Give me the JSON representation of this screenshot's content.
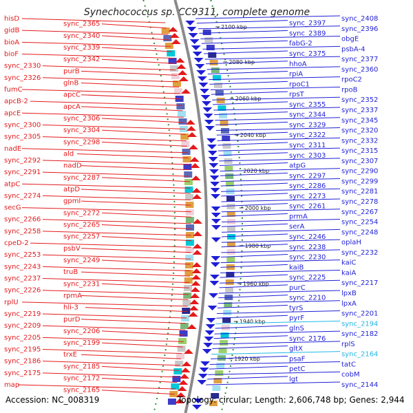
{
  "title": "Synechococcus sp. CC9311, complete genome",
  "accession": "Accession: NC_008319",
  "topology": "Topology: circular; Length: 2,606,748 bp; Genes: 2,944",
  "colors": {
    "forward": "#e41a1c",
    "reverse": "#1f1fd6",
    "highlight": "#20b7e8",
    "backbone": "#8a8a8a",
    "dotted_ring": "#2e8b2e"
  },
  "ticks": [
    "2100 kbp",
    "2080 kbp",
    "2060 kbp",
    "2040 kbp",
    "2020 kbp",
    "2000 kbp",
    "1980 kbp",
    "1960 kbp",
    "1940 kbp",
    "1920 kbp"
  ],
  "forward_genes": [
    "hisD",
    "sync_2365",
    "gidB",
    "sync_2340",
    "bioA",
    "sync_2339",
    "bioF",
    "sync_2342",
    "sync_2330",
    "purB",
    "sync_2326",
    "glnB",
    "fumC",
    "apcC",
    "apcB-2",
    "apcA",
    "apcE",
    "sync_2306",
    "sync_2300",
    "sync_2304",
    "sync_2305",
    "sync_2298",
    "nadE",
    "ald",
    "sync_2292",
    "nadD",
    "sync_2291",
    "sync_2287",
    "atpC",
    "atpD",
    "sync_2274",
    "gpmI",
    "secG",
    "sync_2272",
    "sync_2266",
    "sync_2265",
    "sync_2258",
    "sync_2257",
    "cpeD-2",
    "psbV",
    "sync_2253",
    "sync_2249",
    "sync_2243",
    "truB",
    "sync_2237",
    "sync_2231",
    "sync_2226",
    "rpmA",
    "rplU",
    "hli-3",
    "sync_2219",
    "purD",
    "sync_2209",
    "sync_2206",
    "sync_2205",
    "sync_2199",
    "sync_2195",
    "trxE",
    "sync_2186",
    "sync_2185",
    "sync_2175",
    "sync_2172",
    "map",
    "sync_2165"
  ],
  "reverse_genes": [
    "sync_2408",
    "sync_2397",
    "sync_2396",
    "sync_2389",
    "obgE",
    "fabG-2",
    "psbA-4",
    "sync_2375",
    "sync_2377",
    "hhoA",
    "sync_2360",
    "rpiA",
    "rpoC2",
    "rpoC1",
    "rpoB",
    "rpsT",
    "sync_2352",
    "sync_2355",
    "sync_2337",
    "sync_2344",
    "sync_2345",
    "sync_2329",
    "sync_2320",
    "sync_2322",
    "sync_2332",
    "sync_2311",
    "sync_2315",
    "sync_2303",
    "sync_2307",
    "atpG",
    "sync_2290",
    "sync_2297",
    "sync_2299",
    "sync_2286",
    "sync_2281",
    "sync_2273",
    "sync_2278",
    "sync_2261",
    "sync_2267",
    "prmA",
    "sync_2254",
    "serA",
    "sync_2248",
    "sync_2246",
    "oplaH",
    "sync_2238",
    "sync_2232",
    "sync_2230",
    "kaiC",
    "kaiB",
    "kaiA",
    "sync_2225",
    "sync_2217",
    "purC",
    "lpxB",
    "sync_2210",
    "lpxA",
    "tyrS",
    "sync_2201",
    "pyrF",
    "sync_2194",
    "glnS",
    "sync_2182",
    "sync_2176",
    "rplS",
    "gltX",
    "sync_2164",
    "psaF",
    "tatC",
    "petC",
    "cobM",
    "lgt",
    "sync_2144"
  ],
  "highlight_genes": [
    "sync_2194",
    "sync_2164"
  ]
}
